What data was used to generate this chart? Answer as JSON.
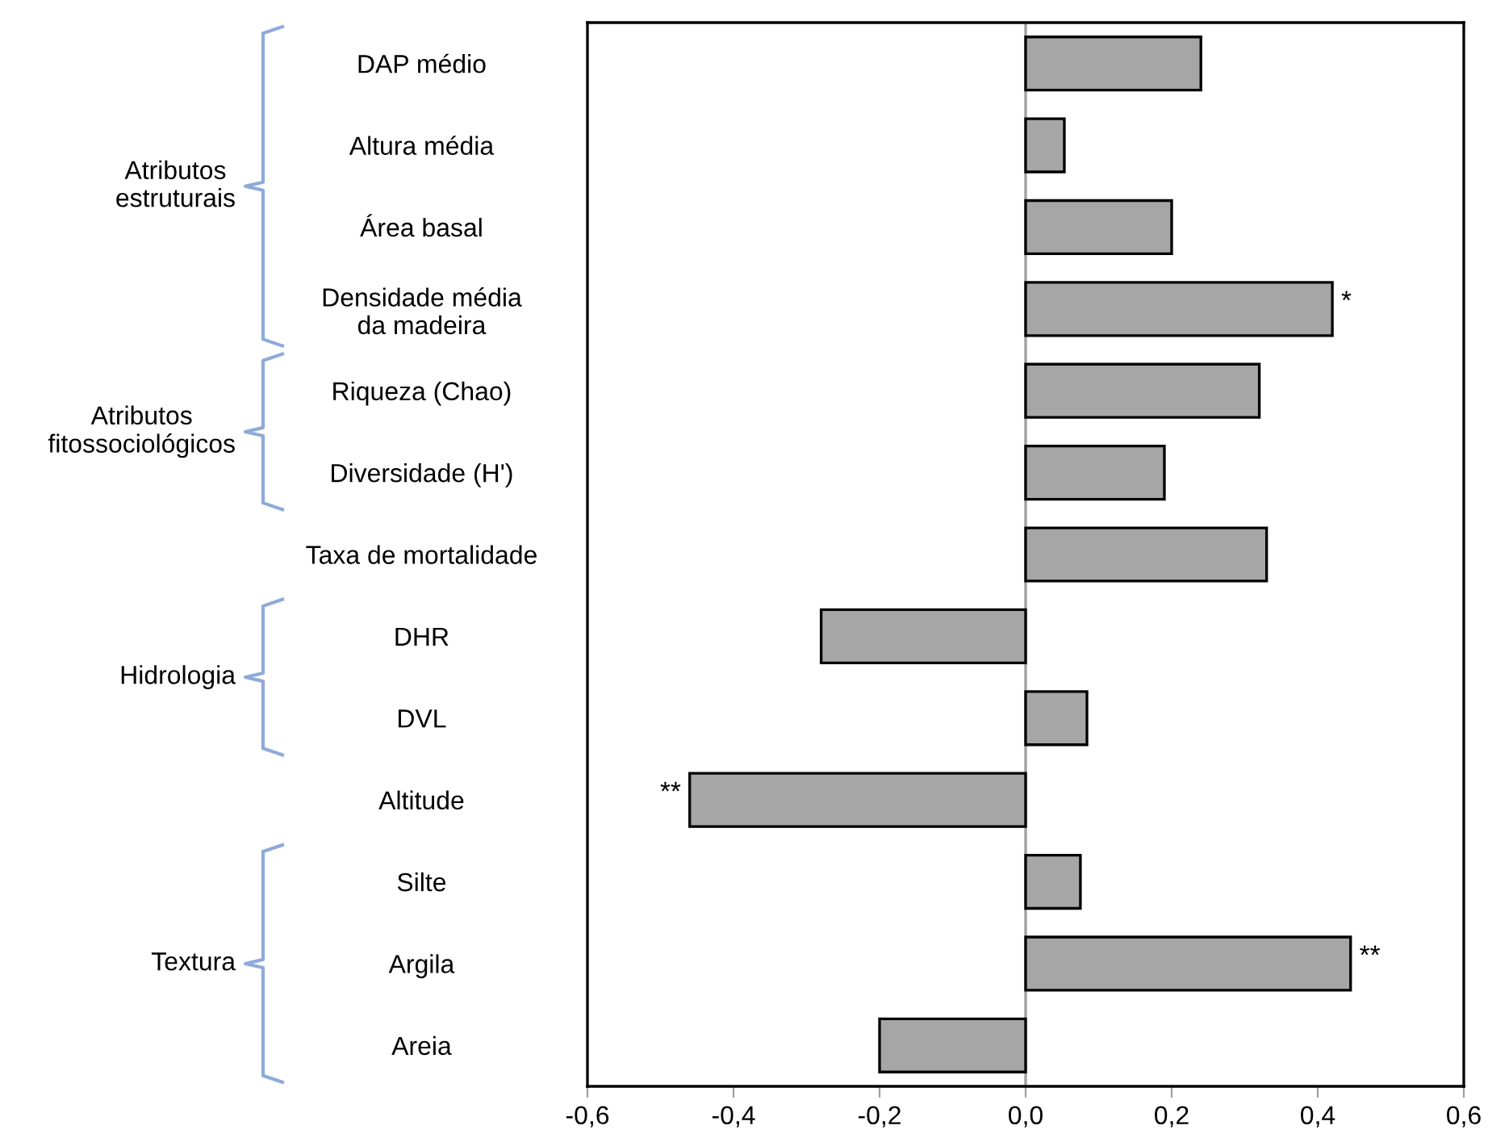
{
  "chart_data": {
    "type": "bar",
    "orientation": "horizontal",
    "categories": [
      "DAP médio",
      "Altura média",
      "Área basal",
      "Densidade média\nda madeira",
      "Riqueza (Chao)",
      "Diversidade (H')",
      "Taxa de mortalidade",
      "DHR",
      "DVL",
      "Altitude",
      "Silte",
      "Argila",
      "Areia"
    ],
    "values": [
      0.24,
      0.053,
      0.2,
      0.42,
      0.32,
      0.19,
      0.33,
      -0.28,
      0.084,
      -0.46,
      0.075,
      0.445,
      -0.2
    ],
    "color": "#a6a6a6",
    "xlim": [
      -0.6,
      0.6
    ],
    "xticks": [
      {
        "value": -0.6,
        "label": "-0,6"
      },
      {
        "value": -0.4,
        "label": "-0,4"
      },
      {
        "value": -0.2,
        "label": "-0,2"
      },
      {
        "value": 0.0,
        "label": "0,0"
      },
      {
        "value": 0.2,
        "label": "0,2"
      },
      {
        "value": 0.4,
        "label": "0,4"
      },
      {
        "value": 0.6,
        "label": "0,6"
      }
    ],
    "ref_lines": [
      {
        "axis": "x",
        "value": 0.0,
        "color": "#a0a0a0"
      }
    ],
    "grid": false,
    "legend": false,
    "annotations": [
      "Atributos\nestruturais",
      "Atributos\nfitossociológicos",
      "Hidrologia",
      "Textura",
      {
        "text": "*",
        "x": 0.42,
        "y": "Densidade média\nda madeira"
      },
      {
        "text": "**",
        "x": -0.46,
        "y": "Altitude"
      },
      {
        "text": "**",
        "x": 0.445,
        "y": "Argila"
      }
    ]
  }
}
